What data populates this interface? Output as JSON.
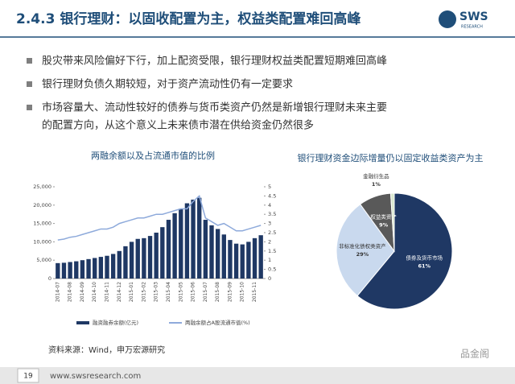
{
  "header": {
    "title": "2.4.3 银行理财：以固收配置为主，权益类配置难回高峰",
    "logo": "SWS",
    "logo_sub": "RESEARCH"
  },
  "bullets": [
    "股灾带来风险偏好下行，加上配资受限，银行理财权益类配置短期难回高峰",
    "银行理财负债久期较短，对于资产流动性仍有一定要求",
    "市场容量大、流动性较好的债券与货币类资产仍然是新增银行理财未来主要",
    "的配置方向，从这个意义上未来债市潜在供给资金仍然很多"
  ],
  "chart_data": [
    {
      "type": "bar_line",
      "title": "两融余额以及占流通市值的比例",
      "categories": [
        "2014-07",
        null,
        "2014-08",
        null,
        "2014-09",
        null,
        "2014-10",
        null,
        "2014-11",
        null,
        "2014-12",
        null,
        "2015-01",
        null,
        "2015-02",
        null,
        "2015-03",
        null,
        "2015-04",
        null,
        "2015-05",
        null,
        "2015-06",
        null,
        "2015-07",
        null,
        "2015-08",
        null,
        "2015-09",
        null,
        "2015-10",
        null,
        "2015-11",
        null
      ],
      "series": [
        {
          "name": "融资融券余额(亿元)",
          "color": "#1f3864",
          "values": [
            4200,
            4300,
            4500,
            4700,
            5000,
            5300,
            5600,
            5900,
            6200,
            6700,
            7500,
            8800,
            10000,
            10800,
            11000,
            11600,
            12500,
            14000,
            16000,
            17800,
            19000,
            20500,
            21500,
            22000,
            16000,
            14500,
            13500,
            12000,
            10500,
            9500,
            9300,
            10000,
            11000,
            11800
          ]
        },
        {
          "name": "两融余额占A股流通市值(%)",
          "color": "#8eaadb",
          "axis": "y2",
          "values": [
            2.1,
            2.15,
            2.25,
            2.3,
            2.4,
            2.5,
            2.6,
            2.7,
            2.7,
            2.8,
            3.0,
            3.1,
            3.2,
            3.3,
            3.3,
            3.4,
            3.5,
            3.5,
            3.6,
            3.7,
            3.8,
            3.8,
            4.2,
            4.5,
            3.3,
            3.1,
            2.9,
            3.0,
            2.8,
            2.6,
            2.6,
            2.7,
            2.8,
            2.9
          ]
        }
      ],
      "ylim": [
        0,
        25000
      ],
      "yticks": [
        0,
        {
          "value": 5000,
          "label": "5,000"
        },
        {
          "value": 10000,
          "label": "10,000"
        },
        {
          "value": 15000,
          "label": "15,000"
        },
        {
          "value": 20000,
          "label": "20,000"
        },
        {
          "value": 25000,
          "label": "25,000"
        }
      ],
      "y2lim": [
        0,
        5
      ],
      "y2ticks": [
        0,
        0.5,
        1,
        1.5,
        2,
        2.5,
        3,
        3.5,
        4,
        4.5,
        5
      ]
    },
    {
      "type": "pie",
      "title": "银行理财资金边际增量仍以固定收益类资产为主",
      "categories": [
        "债券及货币市场",
        "非标准化债权类资产",
        "权益类资产",
        "金融衍生品"
      ],
      "values": [
        61,
        29,
        9,
        1
      ],
      "value_labels": [
        "61%",
        "29%",
        "9%",
        "1%"
      ],
      "colors": [
        "#1f3864",
        "#c9d9ee",
        "#595959",
        "#d9e8cf"
      ]
    }
  ],
  "source": "资料来源：Wind，申万宏源研究",
  "footer": {
    "page": "19",
    "url": "www.swsresearch.com",
    "watermark": "品金阁"
  }
}
